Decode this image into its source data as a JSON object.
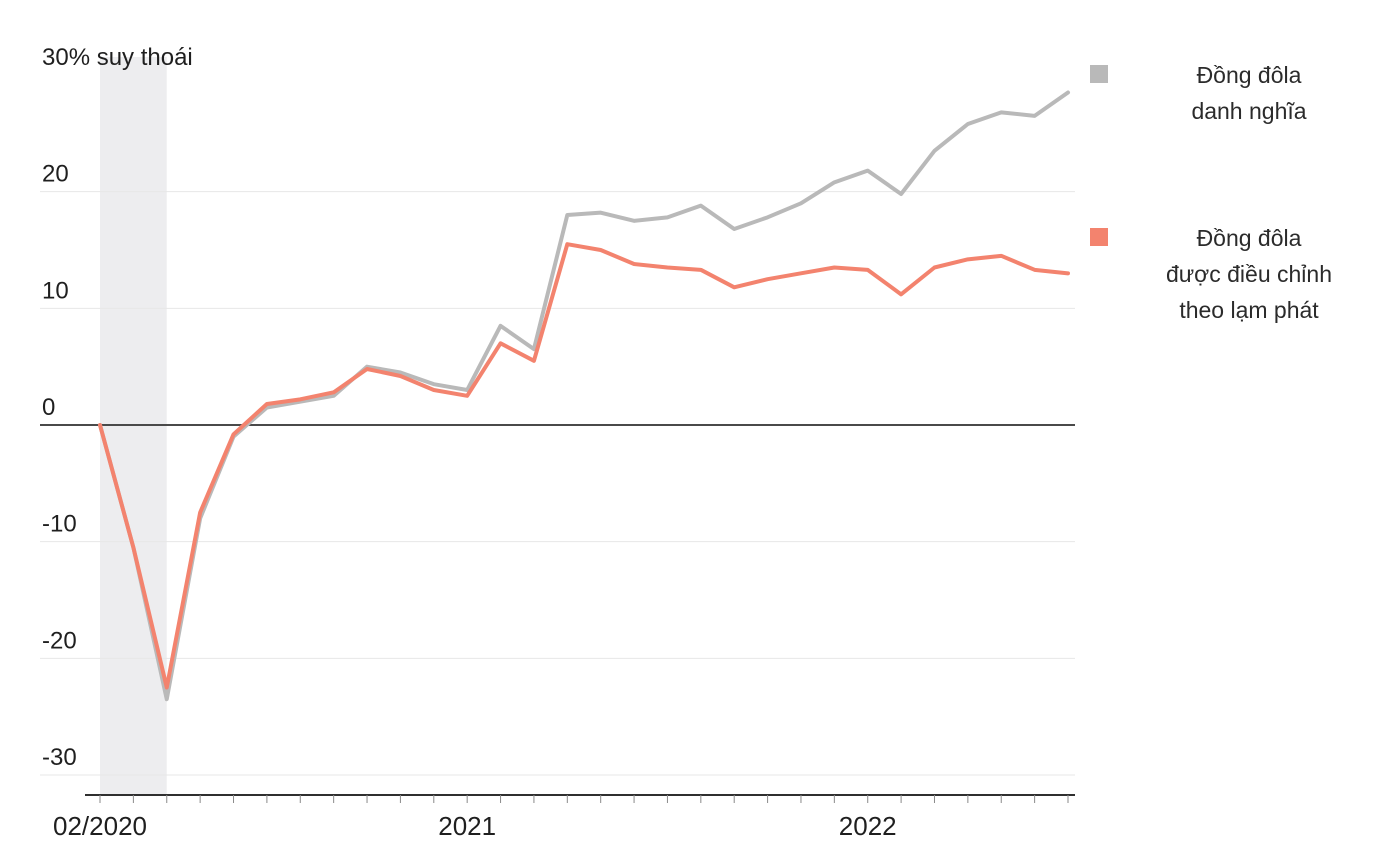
{
  "page": {
    "background": "#ffffff"
  },
  "chart_data": {
    "type": "line",
    "title": "",
    "grid": "horizontal",
    "legend_position": "right",
    "y_axis": {
      "ylim": [
        -30,
        30
      ],
      "unit": "%",
      "ticks": [
        {
          "value": 30,
          "label": "30% suy thoái"
        },
        {
          "value": 20,
          "label": "20"
        },
        {
          "value": 10,
          "label": "10"
        },
        {
          "value": 0,
          "label": "0"
        },
        {
          "value": -10,
          "label": "-10"
        },
        {
          "value": -20,
          "label": "-20"
        },
        {
          "value": -30,
          "label": "-30"
        }
      ]
    },
    "x_axis": {
      "months": [
        "02/2020",
        "03/2020",
        "04/2020",
        "05/2020",
        "06/2020",
        "07/2020",
        "08/2020",
        "09/2020",
        "10/2020",
        "11/2020",
        "12/2020",
        "01/2021",
        "02/2021",
        "03/2021",
        "04/2021",
        "05/2021",
        "06/2021",
        "07/2021",
        "08/2021",
        "09/2021",
        "10/2021",
        "11/2021",
        "12/2021",
        "01/2022",
        "02/2022",
        "03/2022",
        "04/2022",
        "05/2022",
        "06/2022",
        "07/2022"
      ],
      "tick_labels": [
        {
          "index": 0,
          "label": "02/2020"
        },
        {
          "index": 11,
          "label": "2021"
        },
        {
          "index": 23,
          "label": "2022"
        }
      ]
    },
    "recession_band": {
      "start_index": 0,
      "end_index": 2,
      "note": "suy thoái",
      "color": "#ededef"
    },
    "series": [
      {
        "name": "Đồng đôla danh nghĩa",
        "color": "#b9b9b9",
        "values": [
          0,
          -10.5,
          -23.5,
          -8,
          -1,
          1.5,
          2,
          2.5,
          5,
          4.5,
          3.5,
          3,
          8.5,
          6.5,
          18,
          18.2,
          17.5,
          17.8,
          18.8,
          16.8,
          17.8,
          19,
          20.8,
          21.8,
          19.8,
          23.5,
          25.8,
          26.8,
          26.5,
          28.5
        ]
      },
      {
        "name": "Đồng đôla được điều chỉnh theo lạm phát",
        "color": "#f3836e",
        "values": [
          0,
          -10.5,
          -22.5,
          -7.5,
          -0.8,
          1.8,
          2.2,
          2.8,
          4.8,
          4.2,
          3,
          2.5,
          7,
          5.5,
          15.5,
          15,
          13.8,
          13.5,
          13.3,
          11.8,
          12.5,
          13,
          13.5,
          13.3,
          11.2,
          13.5,
          14.2,
          14.5,
          13.3,
          13
        ]
      }
    ],
    "colors": {
      "gridline": "#e7e7e7",
      "zero_line": "#4a4a4a",
      "axis_line": "#2f2f2f",
      "tick": "#8a8a8a",
      "label_text": "#1f1f1f"
    }
  },
  "legend": {
    "items": [
      {
        "series_index": 0,
        "lines": [
          "Đồng đôla",
          "danh nghĩa"
        ]
      },
      {
        "series_index": 1,
        "lines": [
          "Đồng đôla",
          "được điều chỉnh",
          "theo lạm phát"
        ]
      }
    ]
  }
}
